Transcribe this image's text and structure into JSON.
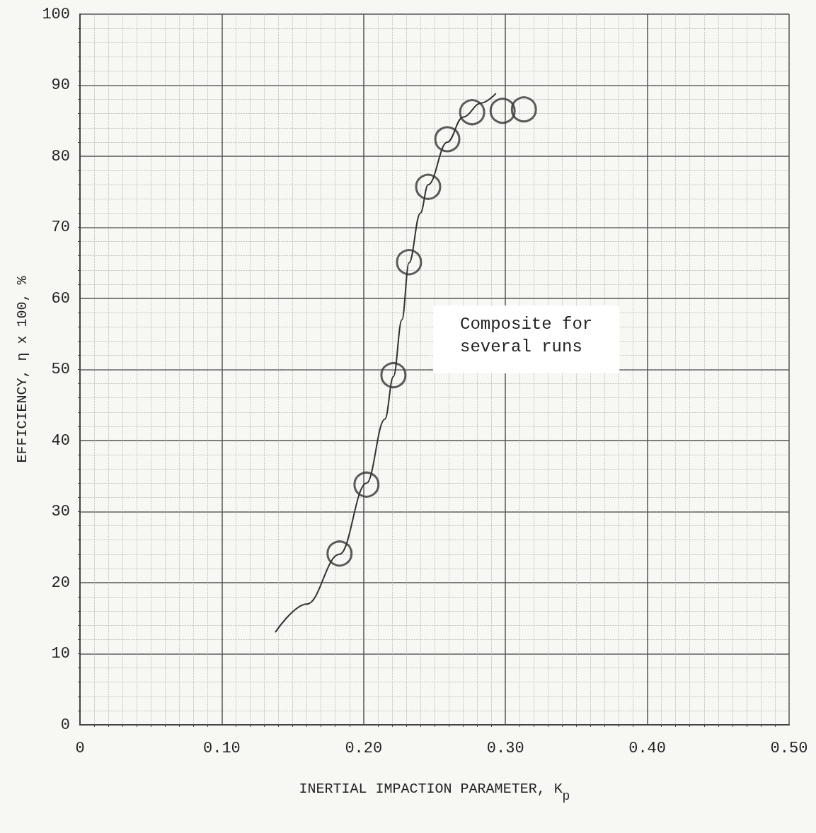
{
  "chart_data": {
    "type": "scatter",
    "xlabel": "INERTIAL IMPACTION PARAMETER, K$_{p}$",
    "ylabel": "EFFICIENCY, η x 100, %",
    "annotations": [
      "Composite for\nseveral runs"
    ],
    "xlim": [
      0,
      0.5
    ],
    "xticks": [
      0,
      {
        "value": 0.1,
        "label": "0.10"
      },
      {
        "value": 0.2,
        "label": "0.20"
      },
      {
        "value": 0.3,
        "label": "0.30"
      },
      {
        "value": 0.4,
        "label": "0.40"
      },
      {
        "value": 0.5,
        "label": "0.50"
      }
    ],
    "ylim": [
      0,
      100
    ],
    "yticks": [
      0,
      10,
      20,
      30,
      40,
      50,
      60,
      70,
      80,
      90,
      100
    ],
    "grid": true,
    "marker": "circle",
    "series": [
      {
        "color": "#333333",
        "x": [
          0.183,
          0.202,
          0.221,
          0.232,
          0.2455,
          0.259,
          0.2765,
          0.298,
          0.313
        ],
        "values": [
          24.1,
          33.8,
          49.2,
          65.1,
          75.7,
          82.4,
          86.2,
          86.4,
          86.6
        ]
      },
      {
        "type": "line",
        "color": "#333333",
        "marker": "none",
        "line_style": "solid",
        "x": [
          0.138,
          0.16,
          0.183,
          0.202,
          0.215,
          0.221,
          0.227,
          0.232,
          0.24,
          0.2455,
          0.259,
          0.27,
          0.283,
          0.293
        ],
        "values": [
          13.1,
          17,
          24,
          34,
          43,
          49,
          57,
          65,
          72,
          76,
          82,
          85.5,
          87.5,
          88.8
        ]
      }
    ]
  }
}
